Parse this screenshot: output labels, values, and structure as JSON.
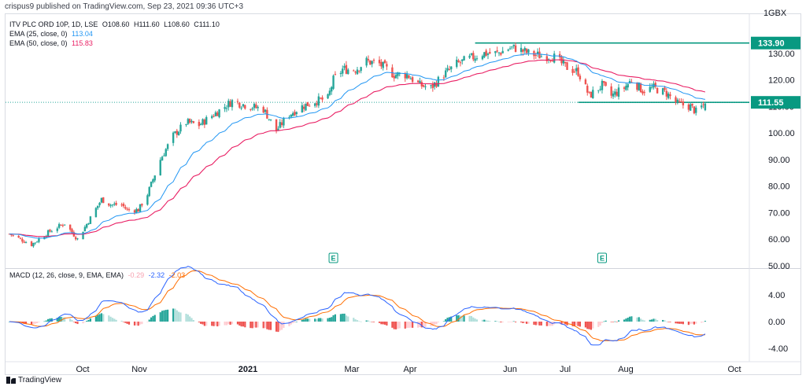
{
  "header": {
    "publish_text": "crispus9 published on TradingView.com, Sep 23, 2021 09:36 UTC+3"
  },
  "footer": {
    "brand": "TradingView"
  },
  "main_legend": {
    "symbol_text": "ITV PLC ORD 10P, 1D, LSE",
    "ohlc": [
      "O108.60",
      "H111.60",
      "L108.60",
      "C111.10"
    ],
    "ema25_label": "EMA (25, close, 0)",
    "ema25_value": "113.04",
    "ema50_label": "EMA (50, close, 0)",
    "ema50_value": "115.83"
  },
  "macd_legend": {
    "label": "MACD (12, 26, close, 9, EMA, EMA)",
    "hist_value": "-0.29",
    "macd_value": "-2.32",
    "signal_value": "-2.03"
  },
  "colors": {
    "up": "#26a69a",
    "down": "#ef5350",
    "ema25": "#2196f3",
    "ema50": "#e91e63",
    "macd": "#2962ff",
    "signal": "#ff6d00",
    "hist_up_light": "#b2dfdb",
    "hist_down_light": "#ffcdd2",
    "level": "#089981",
    "dotted_price": "#26a69a"
  },
  "chart_data": [
    {
      "type": "candlestick",
      "title": "ITV PLC ORD 10P, 1D, LSE",
      "currency": "GBX",
      "y_axis_label": "GBX",
      "ylim": [
        50,
        136
      ],
      "y_ticks": [
        "130.00",
        "120.00",
        "110.00",
        "100.00",
        "90.00",
        "80.00",
        "70.00",
        "60.00",
        "50.00"
      ],
      "x_ticks": [
        "Oct",
        "Nov",
        "2021",
        "Mar",
        "Apr",
        "Jun",
        "Jul",
        "Aug",
        "Oct"
      ],
      "price_labels": [
        "133.90",
        "111.55"
      ],
      "horizontal_levels": [
        {
          "value": 133.9,
          "from": "2021-05-20",
          "to": "2021-09-22"
        },
        {
          "value": 111.55,
          "from": "2021-07-15",
          "to": "2021-09-22"
        }
      ],
      "earnings_markers": {
        "label": "E",
        "dates": [
          "2021-03-04",
          "2021-07-28"
        ]
      },
      "close_path": [
        [
          "2020-09-09",
          62
        ],
        [
          "2020-09-21",
          58
        ],
        [
          "2020-10-01",
          63
        ],
        [
          "2020-10-09",
          66
        ],
        [
          "2020-10-16",
          60
        ],
        [
          "2020-10-23",
          68
        ],
        [
          "2020-10-29",
          75
        ],
        [
          "2020-11-03",
          73
        ],
        [
          "2020-11-09",
          73
        ],
        [
          "2020-11-12",
          71
        ],
        [
          "2020-11-18",
          71
        ],
        [
          "2020-11-23",
          77
        ],
        [
          "2020-11-30",
          90
        ],
        [
          "2020-12-07",
          99
        ],
        [
          "2020-12-14",
          104
        ],
        [
          "2020-12-21",
          103
        ],
        [
          "2020-12-31",
          108
        ],
        [
          "2021-01-08",
          112
        ],
        [
          "2021-01-18",
          110
        ],
        [
          "2021-01-25",
          109
        ],
        [
          "2021-02-01",
          101
        ],
        [
          "2021-02-08",
          107
        ],
        [
          "2021-02-15",
          110
        ],
        [
          "2021-02-22",
          112
        ],
        [
          "2021-03-01",
          113
        ],
        [
          "2021-03-04",
          120
        ],
        [
          "2021-03-09",
          124
        ],
        [
          "2021-03-16",
          124
        ],
        [
          "2021-03-22",
          127
        ],
        [
          "2021-03-29",
          126
        ],
        [
          "2021-04-06",
          122
        ],
        [
          "2021-04-13",
          122
        ],
        [
          "2021-04-20",
          118
        ],
        [
          "2021-04-26",
          117
        ],
        [
          "2021-05-03",
          122
        ],
        [
          "2021-05-10",
          126
        ],
        [
          "2021-05-17",
          128
        ],
        [
          "2021-05-24",
          130
        ],
        [
          "2021-06-01",
          130
        ],
        [
          "2021-06-08",
          132
        ],
        [
          "2021-06-11",
          132
        ],
        [
          "2021-06-18",
          130
        ],
        [
          "2021-06-25",
          129
        ],
        [
          "2021-07-01",
          129
        ],
        [
          "2021-07-08",
          125
        ],
        [
          "2021-07-15",
          123
        ],
        [
          "2021-07-21",
          114
        ],
        [
          "2021-07-28",
          118
        ],
        [
          "2021-08-02",
          114
        ],
        [
          "2021-08-09",
          117
        ],
        [
          "2021-08-13",
          120
        ],
        [
          "2021-08-19",
          116
        ],
        [
          "2021-08-25",
          117
        ],
        [
          "2021-09-01",
          115
        ],
        [
          "2021-09-07",
          111
        ],
        [
          "2021-09-14",
          110
        ],
        [
          "2021-09-17",
          108
        ],
        [
          "2021-09-22",
          111.1
        ]
      ],
      "series": [
        {
          "name": "EMA (25, close, 0)",
          "last": 113.04
        },
        {
          "name": "EMA (50, close, 0)",
          "last": 115.83
        }
      ]
    },
    {
      "type": "bar+line",
      "title": "MACD (12, 26, close, 9, EMA, EMA)",
      "ylim": [
        -4.5,
        6
      ],
      "y_ticks": [
        "4.00",
        "0.00",
        "-4.00"
      ],
      "series": [
        {
          "name": "Histogram",
          "last": -0.29
        },
        {
          "name": "MACD",
          "last": -2.32
        },
        {
          "name": "Signal",
          "last": -2.03
        }
      ]
    }
  ]
}
